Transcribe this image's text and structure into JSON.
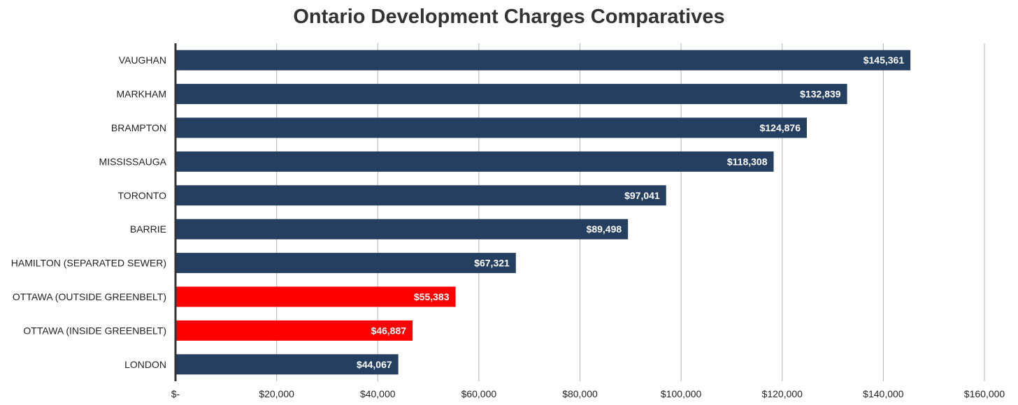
{
  "chart_data": {
    "type": "bar",
    "orientation": "horizontal",
    "title": "Ontario Development Charges Comparatives",
    "xlabel": "",
    "ylabel": "",
    "xlim": [
      0,
      160000
    ],
    "grid": true,
    "legend": "none",
    "categories": [
      "VAUGHAN",
      "MARKHAM",
      "BRAMPTON",
      "MISSISSAUGA",
      "TORONTO",
      "BARRIE",
      "HAMILTON (SEPARATED SEWER)",
      "OTTAWA (OUTSIDE GREENBELT)",
      "OTTAWA (INSIDE GREENBELT)",
      "LONDON"
    ],
    "values": [
      145361,
      132839,
      124876,
      118308,
      97041,
      89498,
      67321,
      55383,
      46887,
      44067
    ],
    "data_labels": [
      "$145,361",
      "$132,839",
      "$124,876",
      "$118,308",
      "$97,041",
      "$89,498",
      "$67,321",
      "$55,383",
      "$46,887",
      "$44,067"
    ],
    "bar_colors": [
      "#243f60",
      "#243f60",
      "#243f60",
      "#243f60",
      "#243f60",
      "#243f60",
      "#243f60",
      "#ff0000",
      "#ff0000",
      "#243f60"
    ],
    "x_ticks": [
      0,
      20000,
      40000,
      60000,
      80000,
      100000,
      120000,
      140000,
      160000
    ],
    "x_tick_labels": [
      "$-",
      "$20,000",
      "$40,000",
      "$60,000",
      "$80,000",
      "$100,000",
      "$120,000",
      "$140,000",
      "$160,000"
    ]
  }
}
